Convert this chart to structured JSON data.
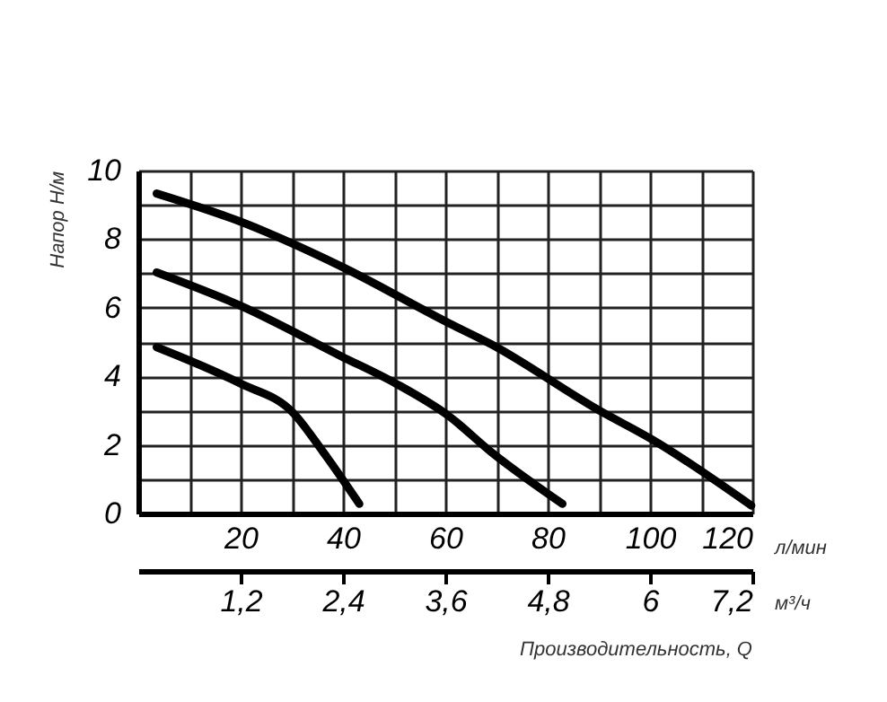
{
  "chart_data": {
    "type": "line",
    "xlabel": "л/мин",
    "ylabel": "Напор Н/м",
    "x2label": "м³/ч",
    "annotations": [
      "Производительность, Q"
    ],
    "xlim": [
      0,
      120
    ],
    "ylim": [
      0,
      10
    ],
    "x2lim": [
      0,
      7.2
    ],
    "xticks": [
      {
        "value": 10,
        "label": null
      },
      20,
      {
        "value": 30,
        "label": null
      },
      40,
      {
        "value": 50,
        "label": null
      },
      60,
      {
        "value": 70,
        "label": null
      },
      80,
      {
        "value": 90,
        "label": null
      },
      100,
      {
        "value": 110,
        "label": null
      },
      120
    ],
    "yticks": [
      0,
      {
        "value": 1,
        "label": null
      },
      2,
      {
        "value": 3,
        "label": null
      },
      4,
      {
        "value": 5,
        "label": null
      },
      6,
      {
        "value": 7,
        "label": null
      },
      8,
      {
        "value": 9,
        "label": null
      },
      10
    ],
    "x2ticks": [
      {
        "value": 1.2,
        "label": "1,2"
      },
      {
        "value": 2.4,
        "label": "2,4"
      },
      {
        "value": 3.6,
        "label": "3,6"
      },
      {
        "value": 4.8,
        "label": "4,8"
      },
      6,
      {
        "value": 7.2,
        "label": "7,2"
      }
    ],
    "grid": true,
    "line_style": "solid",
    "marker": "none",
    "series": [
      {
        "color": "#000000",
        "x": [
          3.6,
          19.8,
          39.6,
          60.7,
          68.9,
          89.9,
          100.5,
          119.8
        ],
        "values": [
          9.33,
          8.52,
          7.21,
          5.55,
          4.94,
          3.02,
          2.15,
          0.23
        ]
      },
      {
        "color": "#000000",
        "x": [
          3.6,
          19.8,
          39.6,
          50.2,
          60.7,
          68.9,
          82.9
        ],
        "values": [
          7.03,
          6.07,
          4.59,
          3.8,
          2.84,
          1.8,
          0.28
        ]
      },
      {
        "color": "#000000",
        "x": [
          3.6,
          19.8,
          30.3,
          36.1,
          43.2
        ],
        "values": [
          4.85,
          3.8,
          2.93,
          1.8,
          0.28
        ]
      }
    ]
  }
}
